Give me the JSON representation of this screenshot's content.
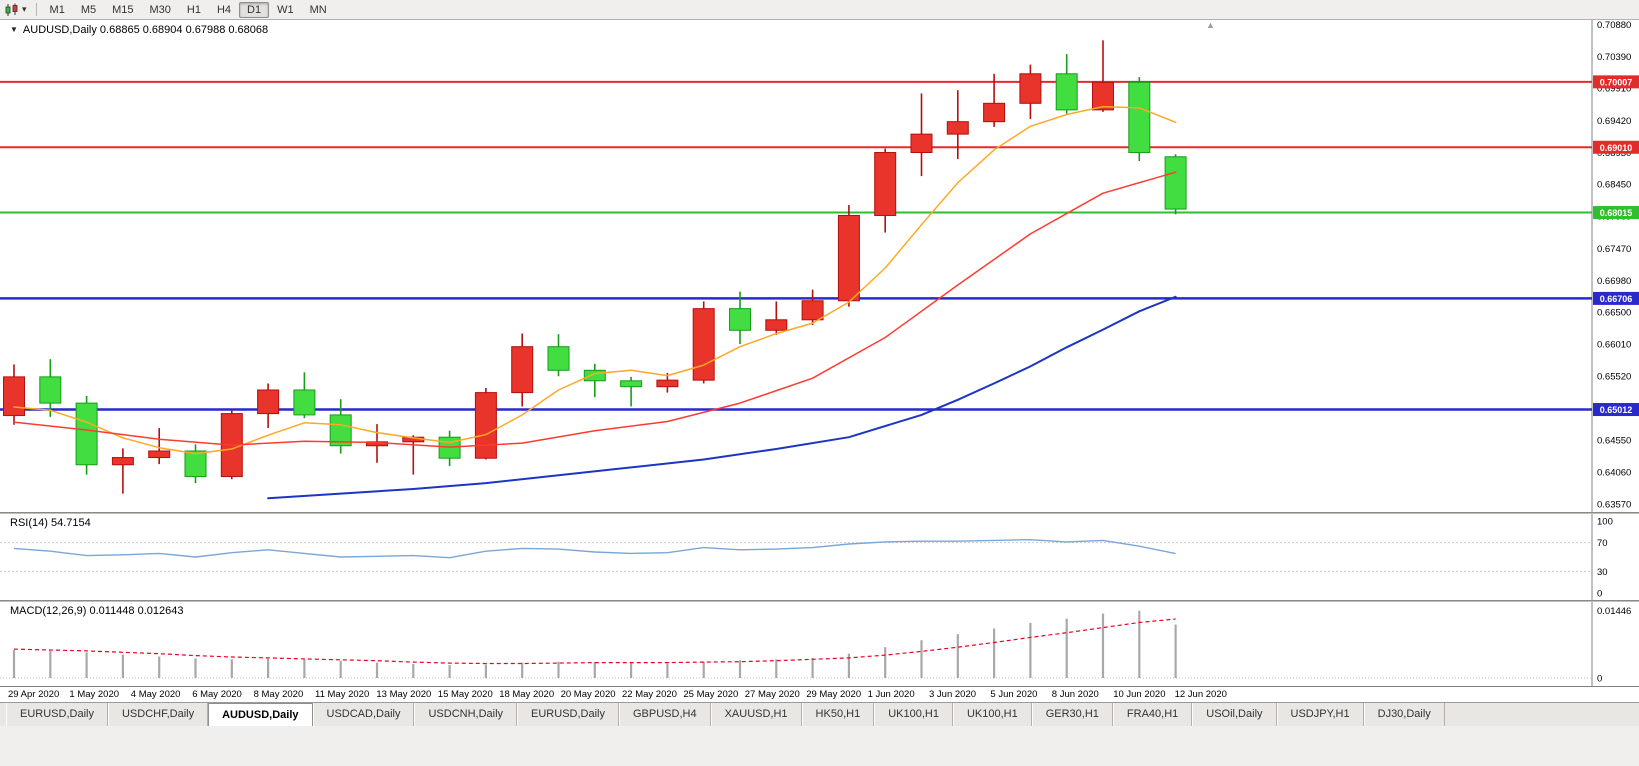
{
  "toolbar": {
    "timeframes": [
      {
        "label": "M1",
        "active": false
      },
      {
        "label": "M5",
        "active": false
      },
      {
        "label": "M15",
        "active": false
      },
      {
        "label": "M30",
        "active": false
      },
      {
        "label": "H1",
        "active": false
      },
      {
        "label": "H4",
        "active": false
      },
      {
        "label": "D1",
        "active": true
      },
      {
        "label": "W1",
        "active": false
      },
      {
        "label": "MN",
        "active": false
      }
    ]
  },
  "chart": {
    "title": "AUDUSD,Daily 0.68865 0.68904 0.67988 0.68068"
  },
  "chart_data": {
    "type": "candlestick",
    "symbol": "AUDUSD",
    "timeframe": "Daily",
    "last_ohlc": {
      "open": "0.68865",
      "high": "0.68904",
      "low": "0.67988",
      "close": "0.68068"
    },
    "price_range": {
      "max": 0.7095,
      "min": 0.6345
    },
    "price_axis_labels": [
      "0.70880",
      "0.70390",
      "0.69910",
      "0.69420",
      "0.68930",
      "0.68450",
      "0.67960",
      "0.67470",
      "0.66980",
      "0.66500",
      "0.66010",
      "0.65520",
      "0.65030",
      "0.64550",
      "0.64060",
      "0.63570"
    ],
    "hlines": [
      {
        "price": 0.70007,
        "label": "0.70007",
        "color": "#e22b2b",
        "width": 2
      },
      {
        "price": 0.6901,
        "label": "0.69010",
        "color": "#e22b2b",
        "width": 2
      },
      {
        "price": 0.68015,
        "label": "0.68015",
        "color": "#2fbf2f",
        "width": 2
      },
      {
        "price": 0.66706,
        "label": "0.66706",
        "color": "#2929cc",
        "width": 2.5
      },
      {
        "price": 0.65012,
        "label": "0.65012",
        "color": "#2929cc",
        "width": 2.5
      }
    ],
    "colors": {
      "bull": "#e8342a",
      "bull_border": "#b50f0f",
      "bear": "#41dd41",
      "bear_border": "#169e16",
      "background": "#ffffff"
    },
    "candles": [
      {
        "date": "29 Apr 2020",
        "o": 0.6492,
        "h": 0.657,
        "l": 0.6478,
        "c": 0.6551
      },
      {
        "date": "30 Apr 2020",
        "o": 0.6551,
        "h": 0.6578,
        "l": 0.649,
        "c": 0.6511
      },
      {
        "date": "1 May 2020",
        "o": 0.6511,
        "h": 0.6522,
        "l": 0.6402,
        "c": 0.6417
      },
      {
        "date": "4 May 2020",
        "o": 0.6417,
        "h": 0.6442,
        "l": 0.6373,
        "c": 0.6428
      },
      {
        "date": "5 May 2020",
        "o": 0.6428,
        "h": 0.6473,
        "l": 0.6418,
        "c": 0.6438
      },
      {
        "date": "6 May 2020",
        "o": 0.6438,
        "h": 0.6448,
        "l": 0.6389,
        "c": 0.6399
      },
      {
        "date": "7 May 2020",
        "o": 0.6399,
        "h": 0.6502,
        "l": 0.6395,
        "c": 0.6495
      },
      {
        "date": "8 May 2020",
        "o": 0.6495,
        "h": 0.6541,
        "l": 0.6473,
        "c": 0.6531
      },
      {
        "date": "11 May 2020",
        "o": 0.6531,
        "h": 0.6558,
        "l": 0.6488,
        "c": 0.6493
      },
      {
        "date": "12 May 2020",
        "o": 0.6493,
        "h": 0.6517,
        "l": 0.6434,
        "c": 0.6446
      },
      {
        "date": "13 May 2020",
        "o": 0.6446,
        "h": 0.6479,
        "l": 0.642,
        "c": 0.6452
      },
      {
        "date": "14 May 2020",
        "o": 0.6452,
        "h": 0.6462,
        "l": 0.6402,
        "c": 0.6459
      },
      {
        "date": "15 May 2020",
        "o": 0.6459,
        "h": 0.6469,
        "l": 0.6415,
        "c": 0.6427
      },
      {
        "date": "18 May 2020",
        "o": 0.6427,
        "h": 0.6534,
        "l": 0.6425,
        "c": 0.6527
      },
      {
        "date": "19 May 2020",
        "o": 0.6527,
        "h": 0.6617,
        "l": 0.6506,
        "c": 0.6597
      },
      {
        "date": "20 May 2020",
        "o": 0.6597,
        "h": 0.6616,
        "l": 0.6552,
        "c": 0.6561
      },
      {
        "date": "21 May 2020",
        "o": 0.6561,
        "h": 0.6571,
        "l": 0.652,
        "c": 0.6545
      },
      {
        "date": "22 May 2020",
        "o": 0.6545,
        "h": 0.6551,
        "l": 0.6506,
        "c": 0.6536
      },
      {
        "date": "25 May 2020",
        "o": 0.6536,
        "h": 0.6557,
        "l": 0.6527,
        "c": 0.6546
      },
      {
        "date": "26 May 2020",
        "o": 0.6546,
        "h": 0.6666,
        "l": 0.6541,
        "c": 0.6655
      },
      {
        "date": "27 May 2020",
        "o": 0.6655,
        "h": 0.6681,
        "l": 0.6601,
        "c": 0.6622
      },
      {
        "date": "28 May 2020",
        "o": 0.6622,
        "h": 0.6666,
        "l": 0.6615,
        "c": 0.6638
      },
      {
        "date": "29 May 2020",
        "o": 0.6638,
        "h": 0.6684,
        "l": 0.663,
        "c": 0.6667
      },
      {
        "date": "1 Jun 2020",
        "o": 0.6667,
        "h": 0.6813,
        "l": 0.6658,
        "c": 0.6797
      },
      {
        "date": "2 Jun 2020",
        "o": 0.6797,
        "h": 0.6899,
        "l": 0.6771,
        "c": 0.6893
      },
      {
        "date": "3 Jun 2020",
        "o": 0.6893,
        "h": 0.6983,
        "l": 0.6857,
        "c": 0.6921
      },
      {
        "date": "4 Jun 2020",
        "o": 0.6921,
        "h": 0.6988,
        "l": 0.6883,
        "c": 0.694
      },
      {
        "date": "5 Jun 2020",
        "o": 0.694,
        "h": 0.7013,
        "l": 0.6932,
        "c": 0.6968
      },
      {
        "date": "8 Jun 2020",
        "o": 0.6968,
        "h": 0.7027,
        "l": 0.6944,
        "c": 0.7013
      },
      {
        "date": "9 Jun 2020",
        "o": 0.7013,
        "h": 0.7043,
        "l": 0.6952,
        "c": 0.6958
      },
      {
        "date": "10 Jun 2020",
        "o": 0.6958,
        "h": 0.7064,
        "l": 0.6955,
        "c": 0.7
      },
      {
        "date": "11 Jun 2020",
        "o": 0.7,
        "h": 0.7008,
        "l": 0.688,
        "c": 0.6893
      },
      {
        "date": "12 Jun 2020",
        "o": 0.68865,
        "h": 0.68904,
        "l": 0.67988,
        "c": 0.68068
      }
    ],
    "ma_lines": [
      {
        "name": "fast-ma-orange",
        "color": "#ffa826",
        "width": 1.5,
        "points": [
          [
            0,
            0.6505
          ],
          [
            1,
            0.65
          ],
          [
            2,
            0.6482
          ],
          [
            3,
            0.6458
          ],
          [
            4,
            0.6443
          ],
          [
            5,
            0.6434
          ],
          [
            6,
            0.6441
          ],
          [
            7,
            0.6462
          ],
          [
            8,
            0.6481
          ],
          [
            9,
            0.6478
          ],
          [
            10,
            0.6466
          ],
          [
            11,
            0.6458
          ],
          [
            12,
            0.6451
          ],
          [
            13,
            0.6463
          ],
          [
            14,
            0.6493
          ],
          [
            15,
            0.6531
          ],
          [
            16,
            0.6556
          ],
          [
            17,
            0.6561
          ],
          [
            18,
            0.6553
          ],
          [
            19,
            0.6569
          ],
          [
            20,
            0.6597
          ],
          [
            21,
            0.6617
          ],
          [
            22,
            0.6633
          ],
          [
            23,
            0.6665
          ],
          [
            24,
            0.6717
          ],
          [
            25,
            0.6783
          ],
          [
            26,
            0.6847
          ],
          [
            27,
            0.6897
          ],
          [
            28,
            0.6933
          ],
          [
            29,
            0.6951
          ],
          [
            30,
            0.6963
          ],
          [
            31,
            0.6961
          ],
          [
            32,
            0.6939
          ]
        ]
      },
      {
        "name": "mid-ma-red",
        "color": "#ff3b30",
        "width": 1.5,
        "points": [
          [
            0,
            0.6482
          ],
          [
            2,
            0.647
          ],
          [
            4,
            0.6456
          ],
          [
            6,
            0.6447
          ],
          [
            8,
            0.6453
          ],
          [
            10,
            0.6451
          ],
          [
            12,
            0.6444
          ],
          [
            14,
            0.645
          ],
          [
            16,
            0.6469
          ],
          [
            18,
            0.6483
          ],
          [
            20,
            0.6511
          ],
          [
            22,
            0.6549
          ],
          [
            24,
            0.6611
          ],
          [
            26,
            0.6691
          ],
          [
            28,
            0.6769
          ],
          [
            30,
            0.6831
          ],
          [
            32,
            0.6863
          ]
        ]
      },
      {
        "name": "slow-ma-blue",
        "color": "#1b35c4",
        "width": 2,
        "points": [
          [
            7,
            0.6366
          ],
          [
            9,
            0.6373
          ],
          [
            11,
            0.638
          ],
          [
            13,
            0.6389
          ],
          [
            15,
            0.6401
          ],
          [
            17,
            0.6413
          ],
          [
            19,
            0.6425
          ],
          [
            21,
            0.6441
          ],
          [
            23,
            0.6459
          ],
          [
            25,
            0.6493
          ],
          [
            26,
            0.6516
          ],
          [
            27,
            0.6541
          ],
          [
            28,
            0.6567
          ],
          [
            29,
            0.6596
          ],
          [
            30,
            0.6623
          ],
          [
            31,
            0.6651
          ],
          [
            32,
            0.6673
          ]
        ]
      }
    ],
    "date_labels": [
      "29 Apr 2020",
      "1 May 2020",
      "4 May 2020",
      "6 May 2020",
      "8 May 2020",
      "11 May 2020",
      "13 May 2020",
      "15 May 2020",
      "18 May 2020",
      "20 May 2020",
      "22 May 2020",
      "25 May 2020",
      "27 May 2020",
      "29 May 2020",
      "1 Jun 2020",
      "3 Jun 2020",
      "5 Jun 2020",
      "8 Jun 2020",
      "10 Jun 2020",
      "12 Jun 2020"
    ],
    "rsi": {
      "label": "RSI(14) 54.7154",
      "levels": [
        "100",
        "70",
        "30",
        "0"
      ],
      "dashed_levels": [
        70,
        30
      ],
      "color": "#7aa6d8",
      "values": [
        62,
        58,
        52,
        53,
        55,
        50,
        56,
        60,
        55,
        50,
        51,
        52,
        49,
        58,
        62,
        61,
        57,
        55,
        56,
        63,
        60,
        61,
        63,
        68,
        71,
        72,
        72,
        73,
        74,
        71,
        73,
        65,
        54.7
      ]
    },
    "macd": {
      "label": "MACD(12,26,9) 0.011448 0.012643",
      "axis_labels": [
        {
          "text": "0.01446",
          "value": 0.01446
        },
        {
          "text": "0",
          "value": 0
        }
      ],
      "scale_max": 0.015,
      "bar_color": "#a8a8a8",
      "signal_color": "#f00020",
      "values": [
        0.006,
        0.0058,
        0.0055,
        0.005,
        0.0046,
        0.0042,
        0.004,
        0.0041,
        0.004,
        0.0037,
        0.0033,
        0.003,
        0.0028,
        0.0029,
        0.0033,
        0.0035,
        0.0034,
        0.0032,
        0.0031,
        0.0035,
        0.0038,
        0.004,
        0.0043,
        0.0052,
        0.0066,
        0.0081,
        0.0094,
        0.0106,
        0.0118,
        0.0127,
        0.0138,
        0.0144,
        0.01145
      ],
      "signal": [
        0.0062,
        0.006,
        0.0058,
        0.0055,
        0.0052,
        0.0048,
        0.0045,
        0.0043,
        0.0041,
        0.0039,
        0.0037,
        0.0034,
        0.0032,
        0.0031,
        0.0031,
        0.0032,
        0.0033,
        0.0033,
        0.0033,
        0.0034,
        0.0035,
        0.0037,
        0.004,
        0.0043,
        0.0049,
        0.0057,
        0.0066,
        0.0076,
        0.0087,
        0.0097,
        0.0108,
        0.0119,
        0.01264
      ]
    }
  },
  "tabs": [
    {
      "label": "EURUSD,Daily",
      "active": false
    },
    {
      "label": "USDCHF,Daily",
      "active": false
    },
    {
      "label": "AUDUSD,Daily",
      "active": true
    },
    {
      "label": "USDCAD,Daily",
      "active": false
    },
    {
      "label": "USDCNH,Daily",
      "active": false
    },
    {
      "label": "EURUSD,Daily",
      "active": false
    },
    {
      "label": "GBPUSD,H4",
      "active": false
    },
    {
      "label": "XAUUSD,H1",
      "active": false
    },
    {
      "label": "HK50,H1",
      "active": false
    },
    {
      "label": "UK100,H1",
      "active": false
    },
    {
      "label": "UK100,H1",
      "active": false
    },
    {
      "label": "GER30,H1",
      "active": false
    },
    {
      "label": "FRA40,H1",
      "active": false
    },
    {
      "label": "USOil,Daily",
      "active": false
    },
    {
      "label": "USDJPY,H1",
      "active": false
    },
    {
      "label": "DJ30,Daily",
      "active": false
    }
  ]
}
